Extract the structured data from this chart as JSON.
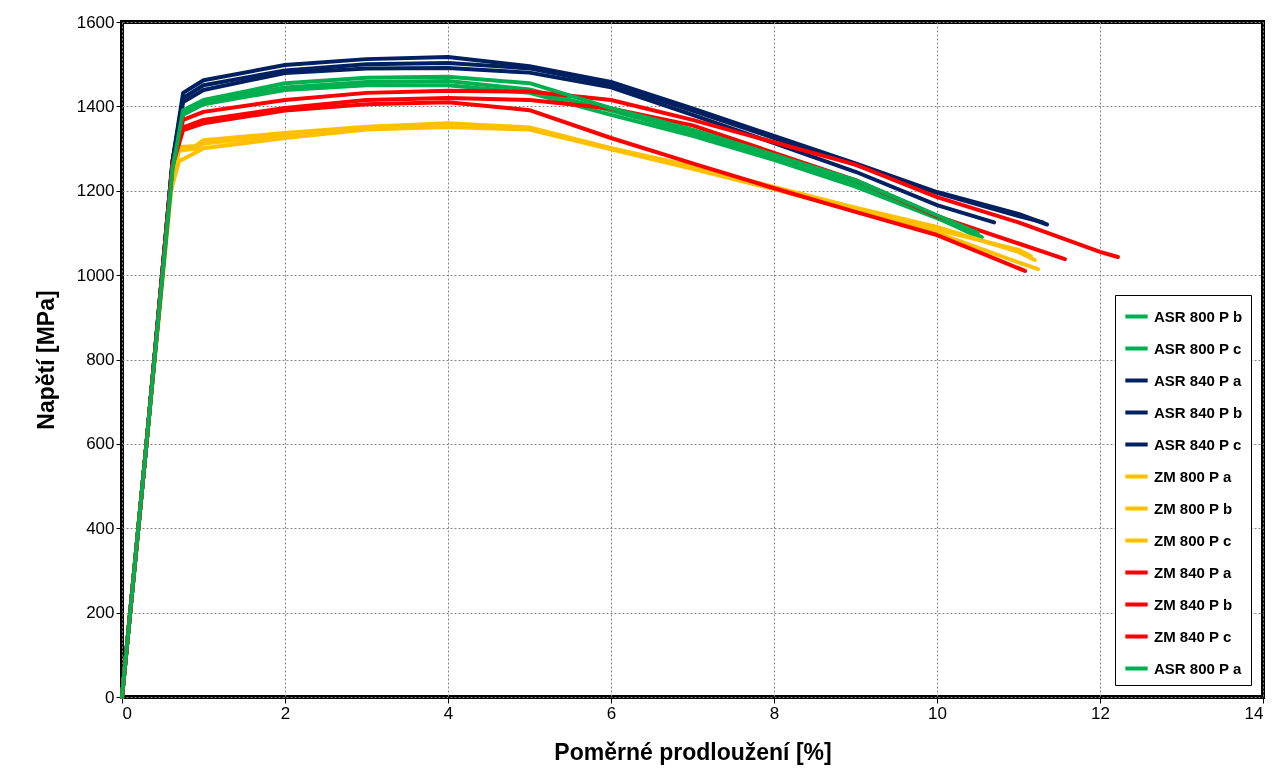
{
  "chart_data": {
    "type": "line",
    "xlabel": "Poměrné prodloužení [%]",
    "ylabel": "Napětí [MPa]",
    "xlim": [
      0,
      14
    ],
    "xticks": [
      0,
      2,
      4,
      6,
      8,
      10,
      12,
      14
    ],
    "ylim": [
      0,
      1600
    ],
    "yticks": [
      0,
      200,
      400,
      600,
      800,
      1000,
      1200,
      1400,
      1600
    ],
    "grid": true,
    "legend": "bottom right",
    "line_style": "solid",
    "series": [
      {
        "name": "ASR 800 P b",
        "color": "#00b050",
        "x": [
          0,
          0.3,
          0.62,
          0.75,
          1,
          2,
          3,
          4,
          5,
          6,
          7,
          8,
          9,
          10,
          10.45
        ],
        "values": [
          0,
          600,
          1250,
          1385,
          1410,
          1445,
          1458,
          1460,
          1440,
          1390,
          1338,
          1280,
          1218,
          1138,
          1095
        ]
      },
      {
        "name": "ASR 800 P c",
        "color": "#00b050",
        "x": [
          0,
          0.3,
          0.62,
          0.75,
          1,
          2,
          3,
          4,
          5,
          6,
          7,
          8,
          9,
          10,
          10.55
        ],
        "values": [
          0,
          600,
          1250,
          1380,
          1405,
          1439,
          1450,
          1450,
          1432,
          1380,
          1330,
          1273,
          1210,
          1135,
          1090
        ]
      },
      {
        "name": "ASR 840 P a",
        "color": "#002060",
        "x": [
          0,
          0.3,
          0.62,
          0.75,
          1,
          2,
          3,
          4,
          5,
          6,
          7,
          8,
          9,
          10,
          11,
          11.35
        ],
        "values": [
          0,
          600,
          1270,
          1432,
          1462,
          1498,
          1512,
          1517,
          1495,
          1458,
          1395,
          1330,
          1265,
          1197,
          1145,
          1120
        ]
      },
      {
        "name": "ASR 840 P b",
        "color": "#002060",
        "x": [
          0,
          0.3,
          0.62,
          0.75,
          1,
          2,
          3,
          4,
          5,
          6,
          7,
          8,
          9,
          10,
          11,
          11.3
        ],
        "values": [
          0,
          600,
          1270,
          1420,
          1450,
          1485,
          1500,
          1503,
          1490,
          1452,
          1390,
          1325,
          1262,
          1195,
          1140,
          1125
        ]
      },
      {
        "name": "ASR 840 P c",
        "color": "#002060",
        "x": [
          0,
          0.3,
          0.62,
          0.75,
          1,
          2,
          3,
          4,
          5,
          6,
          7,
          8,
          9,
          10,
          10.7
        ],
        "values": [
          0,
          600,
          1270,
          1410,
          1439,
          1479,
          1490,
          1491,
          1480,
          1445,
          1380,
          1313,
          1245,
          1166,
          1125
        ]
      },
      {
        "name": "ZM 800 P a",
        "color": "#ffc000",
        "x": [
          0,
          0.3,
          0.6,
          0.7,
          0.9,
          1,
          2,
          3,
          4,
          5,
          6,
          7,
          8,
          9,
          10,
          11,
          11.2
        ],
        "values": [
          0,
          600,
          1200,
          1304,
          1306,
          1320,
          1337,
          1352,
          1360,
          1350,
          1301,
          1258,
          1209,
          1160,
          1114,
          1055,
          1036
        ]
      },
      {
        "name": "ZM 800 P b",
        "color": "#ffc000",
        "x": [
          0,
          0.3,
          0.6,
          0.7,
          0.9,
          1,
          2,
          3,
          4,
          5,
          6,
          7,
          8,
          9,
          10,
          11,
          11.24
        ],
        "values": [
          0,
          600,
          1200,
          1270,
          1290,
          1301,
          1325,
          1345,
          1351,
          1345,
          1298,
          1252,
          1204,
          1152,
          1100,
          1030,
          1014
        ]
      },
      {
        "name": "ZM 800 P c",
        "color": "#ffc000",
        "x": [
          0,
          0.3,
          0.6,
          0.7,
          0.9,
          1,
          2,
          3,
          4,
          5,
          6,
          7,
          8,
          9,
          10,
          11,
          11.15
        ],
        "values": [
          0,
          600,
          1200,
          1295,
          1300,
          1312,
          1332,
          1350,
          1357,
          1348,
          1300,
          1255,
          1207,
          1157,
          1108,
          1060,
          1045
        ]
      },
      {
        "name": "ZM 840 P a",
        "color": "#ff0000",
        "x": [
          0,
          0.3,
          0.62,
          0.75,
          1,
          2,
          3,
          4,
          5,
          6,
          7,
          8,
          9,
          10,
          11,
          12,
          12.22
        ],
        "values": [
          0,
          600,
          1260,
          1368,
          1387,
          1415,
          1432,
          1437,
          1435,
          1415,
          1368,
          1315,
          1262,
          1185,
          1125,
          1055,
          1043
        ]
      },
      {
        "name": "ZM 840 P b",
        "color": "#ff0000",
        "x": [
          0,
          0.3,
          0.62,
          0.75,
          1,
          2,
          3,
          4,
          5,
          6,
          7,
          8,
          9,
          10,
          11,
          11.57
        ],
        "values": [
          0,
          600,
          1260,
          1350,
          1368,
          1396,
          1415,
          1420,
          1415,
          1395,
          1355,
          1290,
          1225,
          1140,
          1075,
          1038
        ]
      },
      {
        "name": "ZM 840 P c",
        "color": "#ff0000",
        "x": [
          0,
          0.3,
          0.62,
          0.75,
          1,
          2,
          3,
          4,
          5,
          6,
          7,
          8,
          9,
          10,
          11.08
        ],
        "values": [
          0,
          600,
          1260,
          1344,
          1360,
          1390,
          1405,
          1410,
          1391,
          1325,
          1265,
          1206,
          1150,
          1095,
          1010
        ]
      },
      {
        "name": "ASR 800 P a",
        "color": "#00b050",
        "x": [
          0,
          0.3,
          0.62,
          0.75,
          1,
          2,
          3,
          4,
          5,
          6,
          7,
          8,
          9,
          10,
          10.5
        ],
        "values": [
          0,
          600,
          1250,
          1391,
          1415,
          1455,
          1468,
          1470,
          1455,
          1396,
          1345,
          1285,
          1225,
          1142,
          1100
        ]
      }
    ]
  }
}
